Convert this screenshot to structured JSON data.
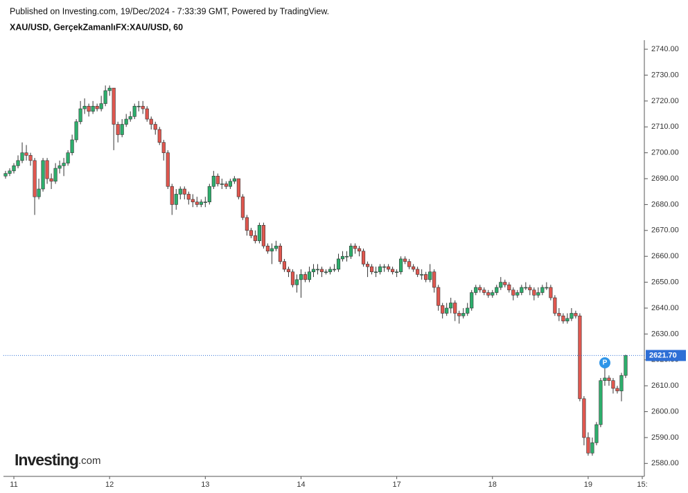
{
  "header": "Published on Investing.com, 19/Dec/2024 - 7:33:39 GMT, Powered by TradingView.",
  "logo": {
    "name": "Investing",
    "suffix": ".com"
  },
  "event_marker": "P",
  "chart_data": {
    "type": "candlestick",
    "title": "XAU/USD, GerçekZamanlıFX:XAU/USD, 60",
    "up_color": "#2dae6c",
    "down_color": "#e0574f",
    "wick_color": "#333333",
    "categories": [
      null,
      null,
      "11",
      null,
      null,
      null,
      null,
      null,
      null,
      null,
      null,
      null,
      null,
      null,
      null,
      null,
      null,
      null,
      null,
      null,
      null,
      null,
      null,
      null,
      null,
      "12",
      null,
      null,
      null,
      null,
      null,
      null,
      null,
      null,
      null,
      null,
      null,
      null,
      null,
      null,
      null,
      null,
      null,
      null,
      null,
      null,
      null,
      null,
      "13",
      null,
      null,
      null,
      null,
      null,
      null,
      null,
      null,
      null,
      null,
      null,
      null,
      null,
      null,
      null,
      null,
      null,
      null,
      null,
      null,
      null,
      null,
      "14",
      null,
      null,
      null,
      null,
      null,
      null,
      null,
      null,
      null,
      null,
      null,
      null,
      null,
      null,
      null,
      null,
      null,
      null,
      null,
      null,
      null,
      null,
      "17",
      null,
      null,
      null,
      null,
      null,
      null,
      null,
      null,
      null,
      null,
      null,
      null,
      null,
      null,
      null,
      null,
      null,
      null,
      null,
      null,
      null,
      null,
      "18",
      null,
      null,
      null,
      null,
      null,
      null,
      null,
      null,
      null,
      null,
      null,
      null,
      null,
      null,
      null,
      null,
      null,
      null,
      null,
      null,
      null,
      null,
      "19",
      null,
      null,
      null,
      null,
      null,
      null,
      null,
      null,
      null,
      null,
      null,
      null,
      "15:"
    ],
    "open": [
      2691,
      2692,
      2693,
      2695,
      2697,
      2700,
      2699,
      2697,
      2683,
      2686,
      2697,
      2690,
      2689,
      2694,
      2695,
      2696,
      2700,
      2705,
      2712,
      2717,
      2718,
      2716,
      2718,
      2717,
      2719,
      2724,
      2725,
      2711,
      2707,
      2711,
      2713,
      2714,
      2718,
      2718,
      2717,
      2713,
      2711,
      2709,
      2704,
      2700,
      2687,
      2680,
      2684,
      2686,
      2684,
      2682,
      2681,
      2680,
      2681,
      2681,
      2687,
      2691,
      2688,
      2688,
      2687,
      2689,
      2690,
      2683,
      2675,
      2670,
      2668,
      2666,
      2672,
      2664,
      2662,
      2663,
      2664,
      2658,
      2655,
      2654,
      2649,
      2651,
      2653,
      2651,
      2654,
      2655,
      2655,
      2654,
      2654,
      2655,
      2655,
      2659,
      2660,
      2660,
      2664,
      2663,
      2662,
      2657,
      2656,
      2654,
      2654,
      2656,
      2656,
      2655,
      2654,
      2654,
      2659,
      2658,
      2656,
      2655,
      2653,
      2653,
      2651,
      2654,
      2648,
      2641,
      2638,
      2640,
      2642,
      2638,
      2637,
      2638,
      2640,
      2646,
      2648,
      2647,
      2646,
      2645,
      2646,
      2648,
      2650,
      2649,
      2647,
      2645,
      2646,
      2648,
      2648,
      2647,
      2645,
      2646,
      2648,
      2648,
      2644,
      2638,
      2637,
      2635,
      2636,
      2638,
      2637,
      2605,
      2590,
      2584,
      2588,
      2595,
      2612,
      2613,
      2612,
      2609,
      2608,
      2614,
      null,
      null,
      null,
      null
    ],
    "high": [
      2693,
      2694,
      2696,
      2699,
      2704,
      2703,
      2700,
      2698,
      2690,
      2698,
      2698,
      2692,
      2696,
      2697,
      2698,
      2701,
      2707,
      2713,
      2720,
      2721,
      2719,
      2720,
      2719,
      2722,
      2726,
      2726,
      2725,
      2712,
      2713,
      2715,
      2716,
      2719,
      2720,
      2720,
      2718,
      2714,
      2712,
      2710,
      2705,
      2701,
      2688,
      2686,
      2687,
      2687,
      2685,
      2684,
      2683,
      2682,
      2683,
      2688,
      2693,
      2692,
      2690,
      2689,
      2690,
      2691,
      2690,
      2684,
      2676,
      2671,
      2670,
      2673,
      2673,
      2665,
      2665,
      2666,
      2665,
      2659,
      2656,
      2655,
      2653,
      2655,
      2654,
      2656,
      2657,
      2657,
      2656,
      2655,
      2656,
      2657,
      2661,
      2662,
      2662,
      2665,
      2665,
      2664,
      2663,
      2658,
      2657,
      2656,
      2657,
      2657,
      2657,
      2656,
      2655,
      2660,
      2660,
      2659,
      2657,
      2656,
      2655,
      2654,
      2657,
      2655,
      2649,
      2642,
      2642,
      2644,
      2643,
      2639,
      2640,
      2642,
      2647,
      2649,
      2649,
      2648,
      2647,
      2647,
      2649,
      2652,
      2651,
      2650,
      2648,
      2647,
      2649,
      2650,
      2649,
      2648,
      2648,
      2649,
      2650,
      2649,
      2645,
      2640,
      2638,
      2638,
      2640,
      2639,
      2638,
      2606,
      2592,
      2590,
      2596,
      2613,
      2617,
      2614,
      2613,
      2610,
      2615,
      2622,
      null,
      null,
      null,
      null
    ],
    "low": [
      2690,
      2691,
      2692,
      2694,
      2696,
      2697,
      2695,
      2676,
      2682,
      2685,
      2688,
      2686,
      2688,
      2692,
      2691,
      2695,
      2699,
      2704,
      2711,
      2715,
      2714,
      2715,
      2716,
      2716,
      2718,
      2722,
      2701,
      2704,
      2706,
      2710,
      2712,
      2713,
      2716,
      2715,
      2712,
      2709,
      2707,
      2703,
      2697,
      2686,
      2676,
      2678,
      2682,
      2682,
      2680,
      2679,
      2679,
      2679,
      2679,
      2680,
      2686,
      2687,
      2686,
      2686,
      2686,
      2688,
      2682,
      2674,
      2668,
      2667,
      2665,
      2665,
      2663,
      2661,
      2657,
      2662,
      2657,
      2654,
      2652,
      2648,
      2646,
      2644,
      2650,
      2650,
      2652,
      2653,
      2652,
      2653,
      2653,
      2654,
      2654,
      2658,
      2658,
      2659,
      2661,
      2660,
      2656,
      2652,
      2653,
      2652,
      2653,
      2654,
      2654,
      2653,
      2652,
      2653,
      2657,
      2655,
      2654,
      2652,
      2651,
      2650,
      2650,
      2646,
      2639,
      2636,
      2637,
      2638,
      2635,
      2634,
      2636,
      2637,
      2639,
      2645,
      2646,
      2645,
      2644,
      2644,
      2645,
      2647,
      2648,
      2646,
      2643,
      2644,
      2645,
      2647,
      2645,
      2643,
      2644,
      2645,
      2647,
      2643,
      2637,
      2635,
      2634,
      2634,
      2635,
      2636,
      2604,
      2587,
      2583,
      2583,
      2587,
      2594,
      2610,
      2610,
      2607,
      2607,
      2604,
      2613,
      null,
      null,
      null,
      null
    ],
    "close": [
      2692,
      2693,
      2695,
      2697,
      2700,
      2699,
      2697,
      2683,
      2686,
      2697,
      2690,
      2689,
      2694,
      2695,
      2696,
      2700,
      2705,
      2712,
      2717,
      2718,
      2716,
      2718,
      2717,
      2719,
      2724,
      2725,
      2711,
      2707,
      2711,
      2713,
      2714,
      2718,
      2718,
      2717,
      2713,
      2711,
      2709,
      2704,
      2700,
      2687,
      2680,
      2684,
      2686,
      2684,
      2682,
      2681,
      2680,
      2681,
      2681,
      2687,
      2691,
      2688,
      2688,
      2687,
      2689,
      2690,
      2683,
      2675,
      2670,
      2668,
      2666,
      2672,
      2664,
      2662,
      2663,
      2664,
      2658,
      2655,
      2654,
      2649,
      2651,
      2653,
      2651,
      2654,
      2655,
      2655,
      2654,
      2654,
      2655,
      2655,
      2659,
      2660,
      2660,
      2664,
      2663,
      2662,
      2657,
      2656,
      2654,
      2654,
      2656,
      2656,
      2655,
      2654,
      2654,
      2659,
      2658,
      2656,
      2655,
      2653,
      2653,
      2651,
      2654,
      2648,
      2641,
      2638,
      2640,
      2642,
      2638,
      2637,
      2638,
      2640,
      2646,
      2648,
      2647,
      2646,
      2645,
      2646,
      2648,
      2650,
      2649,
      2647,
      2645,
      2646,
      2648,
      2648,
      2647,
      2645,
      2646,
      2648,
      2648,
      2644,
      2638,
      2637,
      2635,
      2636,
      2638,
      2637,
      2605,
      2590,
      2584,
      2588,
      2595,
      2612,
      2613,
      2612,
      2609,
      2608,
      2614,
      2621.7,
      null,
      null,
      null,
      null
    ],
    "ylim": [
      2575,
      2743.5
    ],
    "yticks": [
      {
        "value": 2580,
        "label": "2580.00"
      },
      {
        "value": 2590,
        "label": "2590.00"
      },
      {
        "value": 2600,
        "label": "2600.00"
      },
      {
        "value": 2610,
        "label": "2610.00"
      },
      {
        "value": 2620,
        "label": "2620.00"
      },
      {
        "value": 2630,
        "label": "2630.00"
      },
      {
        "value": 2640,
        "label": "2640.00"
      },
      {
        "value": 2650,
        "label": "2650.00"
      },
      {
        "value": 2660,
        "label": "2660.00"
      },
      {
        "value": 2670,
        "label": "2670.00"
      },
      {
        "value": 2680,
        "label": "2680.00"
      },
      {
        "value": 2690,
        "label": "2690.00"
      },
      {
        "value": 2700,
        "label": "2700.00"
      },
      {
        "value": 2710,
        "label": "2710.00"
      },
      {
        "value": 2720,
        "label": "2720.00"
      },
      {
        "value": 2730,
        "label": "2730.00"
      },
      {
        "value": 2740,
        "label": "2740.00"
      }
    ],
    "last_price": 2621.7,
    "last_price_label": "2621.70",
    "last_price_color": "#2e6fd6"
  }
}
